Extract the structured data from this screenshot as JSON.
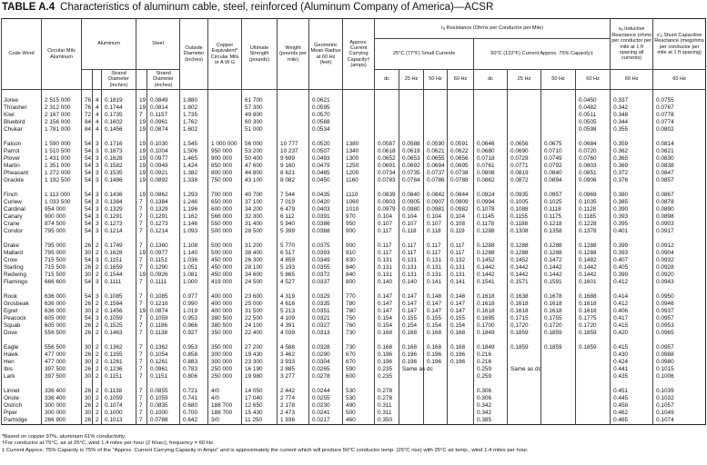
{
  "title": {
    "label": "TABLE A.4",
    "text": "Characteristics of aluminum cable, steel, reinforced (Aluminum Company of America)—ACSR"
  },
  "header": {
    "code_word": "Code Word",
    "circular_mils": "Circular Mils Aluminum",
    "aluminum": "Aluminum",
    "steel": "Steel",
    "al_strand_diameter": "Strand Diameter (inches)",
    "steel_strand_diameter": "Strand Diameter (inches)",
    "outside_diameter": "Outside Diameter (inches)",
    "copper_equivalent": "Copper Equivalent* Circular Mils or A W G",
    "ultimate_strength": "Ultimate Strength (pounds)",
    "weight": "Weight (pounds per mile)",
    "gmr": "Geometric Mean Radius at 60 Hz (feet)",
    "current": "Approx. Current Carrying Capacity† (amps)",
    "resistance": "rₐ Resistance (Ohms per Conductor per Mile)",
    "small_currents": "25°C (77°F) Small Currents",
    "capacity_75": "50°C (122°F) Current Approx. 75% Capacity‡",
    "inductive": "xₐ Inductive Reactance (ohms per conductor per mile at 1 ft spacing all currents)",
    "capacitive": "x′ₐ Shunt Capacitive Reactance (megohms per conductor per mile at 1 ft spacing)",
    "freq": [
      "dc",
      "25 Hz",
      "50 Hz",
      "60 Hz",
      "dc",
      "25 Hz",
      "50 Hz",
      "60 Hz",
      "60 Hz",
      "60 Hz"
    ]
  },
  "groups": [
    [
      [
        "Joree",
        "2 515 000",
        "76",
        "4",
        "0.1819",
        "19",
        "0.0849",
        "1.880",
        null,
        "61 700",
        null,
        "0.0621",
        null,
        null,
        null,
        null,
        null,
        null,
        null,
        null,
        "0.0450",
        "0.337",
        "0.0755"
      ],
      [
        "Thrasher",
        "2 312 000",
        "76",
        "4",
        "0.1744",
        "19",
        "0.0814",
        "1.802",
        null,
        "57 300",
        null,
        "0.0595",
        null,
        null,
        null,
        null,
        null,
        null,
        null,
        null,
        "0.0482",
        "0.342",
        "0.0767"
      ],
      [
        "Kiwi",
        "2 167 000",
        "72",
        "4",
        "0.1735",
        "7",
        "0.1157",
        "1.735",
        null,
        "49 800",
        null,
        "0.0570",
        null,
        null,
        null,
        null,
        null,
        null,
        null,
        null,
        "0.0511",
        "0.348",
        "0.0778"
      ],
      [
        "Bluebird",
        "2 156 000",
        "84",
        "4",
        "0.1602",
        "19",
        "0.0961",
        "1.762",
        null,
        "60 300",
        null,
        "0.0588",
        null,
        null,
        null,
        null,
        null,
        null,
        null,
        null,
        "0.0505",
        "0.344",
        "0.0774"
      ],
      [
        "Chukar",
        "1 781 000",
        "84",
        "4",
        "0.1456",
        "19",
        "0.0874",
        "1.602",
        null,
        "51 000",
        null,
        "0.0534",
        null,
        null,
        null,
        null,
        null,
        null,
        null,
        null,
        "0.0598",
        "0.355",
        "0.0802"
      ]
    ],
    [
      [
        "Falcon",
        "1 590 000",
        "54",
        "3",
        "0.1716",
        "19",
        "0.1030",
        "1.545",
        "1 000 000",
        "56 000",
        "10 777",
        "0.0520",
        "1380",
        "0.0587",
        "0.0588",
        "0.0590",
        "0.0591",
        "0.0646",
        "0.0656",
        "0.0675",
        "0.0684",
        "0.359",
        "0.0814"
      ],
      [
        "Parrot",
        "1 510 500",
        "54",
        "3",
        "0.1673",
        "19",
        "0.1004",
        "1.506",
        "950 000",
        "53 200",
        "10 237",
        "0.0507",
        "1340",
        "0.0618",
        "0.0619",
        "0.0621",
        "0.0622",
        "0.0680",
        "0.0690",
        "0.0710",
        "0.0720",
        "0.362",
        "0.0821"
      ],
      [
        "Plover",
        "1 431 000",
        "54",
        "3",
        "0.1628",
        "19",
        "0.0977",
        "1.465",
        "900 000",
        "50 400",
        "9 699",
        "0.0493",
        "1300",
        "0.0652",
        "0.0653",
        "0.0655",
        "0.0656",
        "0.0718",
        "0.0729",
        "0.0749",
        "0.0760",
        "0.365",
        "0.0830"
      ],
      [
        "Martin",
        "1 351 000",
        "54",
        "3",
        "0.1582",
        "19",
        "0.0949",
        "1.424",
        "850 000",
        "47 600",
        "9 160",
        "0.0479",
        "1250",
        "0.0691",
        "0.0692",
        "0.0694",
        "0.0695",
        "0.0761",
        "0.0771",
        "0.0792",
        "0.0803",
        "0.369",
        "0.0838"
      ],
      [
        "Pheasant",
        "1 272 000",
        "54",
        "3",
        "0.1535",
        "19",
        "0.0921",
        "1.382",
        "800 000",
        "44 800",
        "8 621",
        "0.0465",
        "1200",
        "0.0734",
        "0.0735",
        "0.0737",
        "0.0738",
        "0.0808",
        "0.0819",
        "0.0840",
        "0.0851",
        "0.372",
        "0.0847"
      ],
      [
        "Grackle",
        "1 192 500",
        "54",
        "3",
        "0.1486",
        "19",
        "0.0892",
        "1.338",
        "750 000",
        "43 100",
        "8 082",
        "0.0450",
        "1160",
        "0.0783",
        "0.0784",
        "0.0786",
        "0.0788",
        "0.0862",
        "0.0872",
        "0.0894",
        "0.0906",
        "0.376",
        "0.0857"
      ]
    ],
    [
      [
        "Finch",
        "1 113 000",
        "54",
        "3",
        "0.1436",
        "19",
        "0.0862",
        "1.293",
        "700 000",
        "40 700",
        "7 544",
        "0.0435",
        "1110",
        "0.0839",
        "0.0840",
        "0.0842",
        "0.0844",
        "0.0924",
        "0.0935",
        "0.0957",
        "0.0969",
        "0.380",
        "0.0867"
      ],
      [
        "Curlew",
        "1 033 500",
        "54",
        "3",
        "0.1384",
        "7",
        "0.1384",
        "1.246",
        "650 000",
        "37 100",
        "7 019",
        "0.0420",
        "1060",
        "0.0903",
        "0.0905",
        "0.0907",
        "0.0909",
        "0.0994",
        "0.1005",
        "0.1025",
        "0.1035",
        "0.385",
        "0.0878"
      ],
      [
        "Cardinal",
        "954 000",
        "54",
        "3",
        "0.1329",
        "7",
        "0.1329",
        "1.196",
        "600 000",
        "34 200",
        "6 479",
        "0.0403",
        "1010",
        "0.0979",
        "0.0980",
        "0.0981",
        "0.0982",
        "0.1078",
        "0.1088",
        "0.1118",
        "0.1128",
        "0.390",
        "0.0890"
      ],
      [
        "Canary",
        "900 000",
        "54",
        "3",
        "0.1291",
        "7",
        "0.1291",
        "1.162",
        "566 000",
        "32 300",
        "6 112",
        "0.0391",
        "970",
        "0.104",
        "0.104",
        "0.104",
        "0.104",
        "0.1145",
        "0.1155",
        "0.1175",
        "0.1185",
        "0.393",
        "0.0898"
      ],
      [
        "Crane",
        "874 500",
        "54",
        "3",
        "0.1273",
        "7",
        "0.1273",
        "1.146",
        "550 000",
        "31 400",
        "5 940",
        "0.0386",
        "950",
        "0.107",
        "0.107",
        "0.107",
        "0.108",
        "0.1178",
        "0.1188",
        "0.1218",
        "0.1228",
        "0.395",
        "0.0903"
      ],
      [
        "Condor",
        "795 000",
        "54",
        "3",
        "0.1214",
        "7",
        "0.1214",
        "1.093",
        "500 000",
        "28 500",
        "5 399",
        "0.0368",
        "900",
        "0.117",
        "0.118",
        "0.118",
        "0.119",
        "0.1288",
        "0.1308",
        "0.1358",
        "0.1378",
        "0.401",
        "0.0917"
      ]
    ],
    [
      [
        "Drake",
        "795 000",
        "26",
        "2",
        "0.1749",
        "7",
        "0.1360",
        "1.108",
        "500 000",
        "31 200",
        "5 770",
        "0.0375",
        "900",
        "0.117",
        "0.117",
        "0.117",
        "0.117",
        "0.1288",
        "0.1288",
        "0.1288",
        "0.1288",
        "0.399",
        "0.0912"
      ],
      [
        "Mallard",
        "795 000",
        "30",
        "2",
        "0.1628",
        "19",
        "0.0977",
        "1.140",
        "500 000",
        "38 400",
        "6 517",
        "0.0393",
        "910",
        "0.117",
        "0.117",
        "0.117",
        "0.117",
        "0.1288",
        "0.1288",
        "0.1288",
        "0.1288",
        "0.393",
        "0.0904"
      ],
      [
        "Crow",
        "715 500",
        "54",
        "3",
        "0.1151",
        "7",
        "0.1151",
        "1.036",
        "450 000",
        "26 300",
        "4 859",
        "0.0349",
        "830",
        "0.131",
        "0.131",
        "0.131",
        "0.132",
        "0.1452",
        "0.1452",
        "0.1472",
        "0.1482",
        "0.407",
        "0.0932"
      ],
      [
        "Starling",
        "715 500",
        "26",
        "2",
        "0.1659",
        "7",
        "0.1290",
        "1.051",
        "450 000",
        "28 100",
        "5 193",
        "0.0355",
        "840",
        "0.131",
        "0.131",
        "0.131",
        "0.131",
        "0.1442",
        "0.1442",
        "0.1442",
        "0.1442",
        "0.405",
        "0.0928"
      ],
      [
        "Redwing",
        "715 500",
        "30",
        "2",
        "0.1544",
        "19",
        "0.0926",
        "1.081",
        "450 000",
        "34 600",
        "5 865",
        "0.0372",
        "840",
        "0.131",
        "0.131",
        "0.131",
        "0.131",
        "0.1442",
        "0.1442",
        "0.1442",
        "0.1442",
        "0.399",
        "0.0920"
      ],
      [
        "Flamingo",
        "666 600",
        "54",
        "3",
        "0.1111",
        "7",
        "0.1111",
        "1.000",
        "419 000",
        "24 500",
        "4 527",
        "0.0337",
        "800",
        "0.140",
        "0.140",
        "0.141",
        "0.141",
        "0.1541",
        "0.1571",
        "0.1591",
        "0.1601",
        "0.412",
        "0.0943"
      ]
    ],
    [
      [
        "Rook",
        "636 000",
        "54",
        "3",
        "0.1085",
        "7",
        "0.1085",
        "0.977",
        "400 000",
        "23 600",
        "4 319",
        "0.0329",
        "770",
        "0.147",
        "0.147",
        "0.148",
        "0.148",
        "0.1618",
        "0.1638",
        "0.1678",
        "0.1688",
        "0.414",
        "0.0950"
      ],
      [
        "Grosbeak",
        "636 000",
        "26",
        "2",
        "0.1564",
        "7",
        "0.1216",
        "0.990",
        "400 000",
        "25 000",
        "4 616",
        "0.0335",
        "780",
        "0.147",
        "0.147",
        "0.147",
        "0.147",
        "0.1618",
        "0.1618",
        "0.1618",
        "0.1618",
        "0.412",
        "0.0946"
      ],
      [
        "Egret",
        "636 000",
        "30",
        "2",
        "0.1456",
        "19",
        "0.0874",
        "1.019",
        "400 000",
        "31 500",
        "5 213",
        "0.0351",
        "780",
        "0.147",
        "0.147",
        "0.147",
        "0.147",
        "0.1618",
        "0.1618",
        "0.1618",
        "0.1618",
        "0.406",
        "0.0937"
      ],
      [
        "Peacock",
        "605 000",
        "54",
        "3",
        "0.1059",
        "7",
        "0.1059",
        "0.953",
        "380 500",
        "22 500",
        "4 109",
        "0.0321",
        "750",
        "0.154",
        "0.155",
        "0.155",
        "0.155",
        "0.1695",
        "0.1715",
        "0.1755",
        "0.1775",
        "0.417",
        "0.0957"
      ],
      [
        "Squab",
        "605 000",
        "26",
        "2",
        "0.1525",
        "7",
        "0.1186",
        "0.966",
        "380 500",
        "24 100",
        "4 391",
        "0.0327",
        "760",
        "0.154",
        "0.154",
        "0.154",
        "0.154",
        "0.1700",
        "0.1720",
        "0.1720",
        "0.1720",
        "0.415",
        "0.0953"
      ],
      [
        "Dove",
        "556 500",
        "26",
        "2",
        "0.1463",
        "7",
        "0.1138",
        "0.927",
        "350 000",
        "22 400",
        "4 039",
        "0.0313",
        "730",
        "0.168",
        "0.168",
        "0.168",
        "0.168",
        "0.1849",
        "0.1859",
        "0.1859",
        "0.1859",
        "0.420",
        "0.0965"
      ]
    ],
    [
      [
        "Eagle",
        "556 500",
        "30",
        "2",
        "0.1362",
        "7",
        "0.1362",
        "0.953",
        "350 000",
        "27 200",
        "4 588",
        "0.0328",
        "730",
        "0.168",
        "0.168",
        "0.168",
        "0.168",
        "0.1849",
        "0.1859",
        "0.1859",
        "0.1859",
        "0.415",
        "0.0957"
      ],
      [
        "Hawk",
        "477 000",
        "26",
        "2",
        "0.1355",
        "7",
        "0.1054",
        "0.858",
        "300 000",
        "19 430",
        "3 462",
        "0.0290",
        "670",
        "0.196",
        "0.196",
        "0.196",
        "0.196",
        "0.216",
        null,
        null,
        null,
        "0.430",
        "0.0988"
      ],
      [
        "Hen",
        "477 000",
        "30",
        "2",
        "0.1261",
        "7",
        "0.1261",
        "0.883",
        "300 000",
        "23 300",
        "3 933",
        "0.0304",
        "670",
        "0.196",
        "0.196",
        "0.196",
        "0.196",
        "0.216",
        null,
        null,
        null,
        "0.424",
        "0.0980"
      ],
      [
        "Ibis",
        "397 500",
        "26",
        "2",
        "0.1236",
        "7",
        "0.0961",
        "0.783",
        "250 000",
        "16 190",
        "2 885",
        "0.0265",
        "590",
        "0.235",
        "Same as dc",
        null,
        null,
        "0.259",
        "Same as dc",
        null,
        null,
        "0.441",
        "0.1015"
      ],
      [
        "Lark",
        "397 500",
        "30",
        "2",
        "0.1151",
        "7",
        "0.1151",
        "0.806",
        "250 000",
        "19 980",
        "3 277",
        "0.0278",
        "600",
        "0.235",
        null,
        null,
        null,
        "0.259",
        null,
        null,
        null,
        "0.435",
        "0.1006"
      ]
    ],
    [
      [
        "Linnet",
        "336 400",
        "26",
        "2",
        "0.1138",
        "7",
        "0.0855",
        "0.721",
        "4/0",
        "14 050",
        "2 442",
        "0.0244",
        "530",
        "0.278",
        null,
        null,
        null,
        "0.306",
        null,
        null,
        null,
        "0.451",
        "0.1039"
      ],
      [
        "Oriole",
        "336 400",
        "30",
        "2",
        "0.1059",
        "7",
        "0.1059",
        "0.741",
        "4/0",
        "17 040",
        "2 774",
        "0.0255",
        "530",
        "0.278",
        null,
        null,
        null,
        "0.306",
        null,
        null,
        null,
        "0.445",
        "0.1032"
      ],
      [
        "Ostrich",
        "300 000",
        "26",
        "2",
        "0.1074",
        "7",
        "0.0835",
        "0.680",
        "188 700",
        "12 650",
        "2 178",
        "0.0230",
        "490",
        "0.311",
        null,
        null,
        null,
        "0.342",
        null,
        null,
        null,
        "0.458",
        "0.1057"
      ],
      [
        "Piper",
        "300 000",
        "30",
        "2",
        "0.1000",
        "7",
        "0.1000",
        "0.700",
        "188 700",
        "15 430",
        "2 473",
        "0.0241",
        "500",
        "0.311",
        null,
        null,
        null,
        "0.342",
        null,
        null,
        null,
        "0.462",
        "0.1049"
      ],
      [
        "Partridge",
        "266 800",
        "26",
        "2",
        "0.1013",
        "7",
        "0.0788",
        "0.642",
        "3/0",
        "11 250",
        "1 936",
        "0.0217",
        "460",
        "0.350",
        null,
        null,
        null,
        "0.385",
        null,
        null,
        null,
        "0.465",
        "0.1074"
      ]
    ]
  ],
  "footnotes": [
    "*Based on copper 97%, aluminum 61% conductivity.",
    "†For conductor at 75°C, air at 25°C, wind 1.4 miles per hour (2 ft/sec), frequency = 60 Hz.",
    "‡ Current Approx. 75% Capacity is 75% of the \"Approx. Current Carrying Capacity in Amps\" and is approximately the current which will produce 50°C conductor temp. (25°C rise) with 25°C air temp., wind 1.4 miles per hour."
  ]
}
